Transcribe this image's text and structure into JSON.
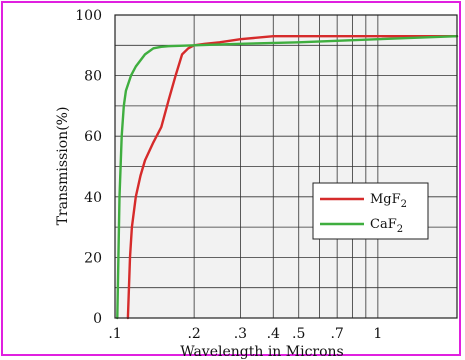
{
  "chart_data": {
    "type": "line",
    "title": "",
    "xlabel": "Wavelength in Microns",
    "ylabel": "Transmission(%)",
    "x_scale": "log",
    "xlim": [
      0.1,
      2.0
    ],
    "ylim": [
      0,
      100
    ],
    "grid": true,
    "legend_position": "right",
    "x_ticks": [
      {
        "value": 0.1,
        "label": ".1"
      },
      {
        "value": 0.2,
        "label": ".2"
      },
      {
        "value": 0.3,
        "label": ".3"
      },
      {
        "value": 0.4,
        "label": ".4"
      },
      {
        "value": 0.5,
        "label": ".5"
      },
      {
        "value": 0.7,
        "label": ".7"
      },
      {
        "value": 1.0,
        "label": "1"
      }
    ],
    "x_gridlines": [
      0.1,
      0.2,
      0.3,
      0.4,
      0.5,
      0.6,
      0.7,
      0.8,
      0.9,
      1.0,
      2.0
    ],
    "y_ticks": [
      0,
      20,
      40,
      60,
      80,
      100
    ],
    "y_gridlines": [
      0,
      10,
      20,
      30,
      40,
      50,
      60,
      70,
      80,
      90,
      100
    ],
    "series": [
      {
        "name": "MgF",
        "subscript": "2",
        "color": "#d62b2b",
        "x": [
          0.112,
          0.114,
          0.116,
          0.12,
          0.125,
          0.13,
          0.14,
          0.15,
          0.16,
          0.17,
          0.18,
          0.19,
          0.2,
          0.22,
          0.25,
          0.3,
          0.4,
          0.5,
          0.7,
          1.0,
          1.5,
          2.0
        ],
        "y": [
          0,
          20,
          30,
          40,
          47,
          52,
          58,
          63,
          72,
          80,
          87,
          89,
          90,
          90.5,
          91,
          92,
          93,
          93,
          93,
          93,
          93,
          93
        ]
      },
      {
        "name": "CaF",
        "subscript": "2",
        "color": "#3fae3f",
        "x": [
          0.102,
          0.104,
          0.106,
          0.108,
          0.11,
          0.115,
          0.12,
          0.13,
          0.14,
          0.15,
          0.16,
          0.2,
          0.3,
          0.5,
          1.0,
          2.0
        ],
        "y": [
          0,
          40,
          60,
          70,
          75,
          80,
          83,
          87,
          89,
          89.5,
          89.7,
          90,
          90.5,
          91,
          92,
          93
        ]
      }
    ]
  }
}
